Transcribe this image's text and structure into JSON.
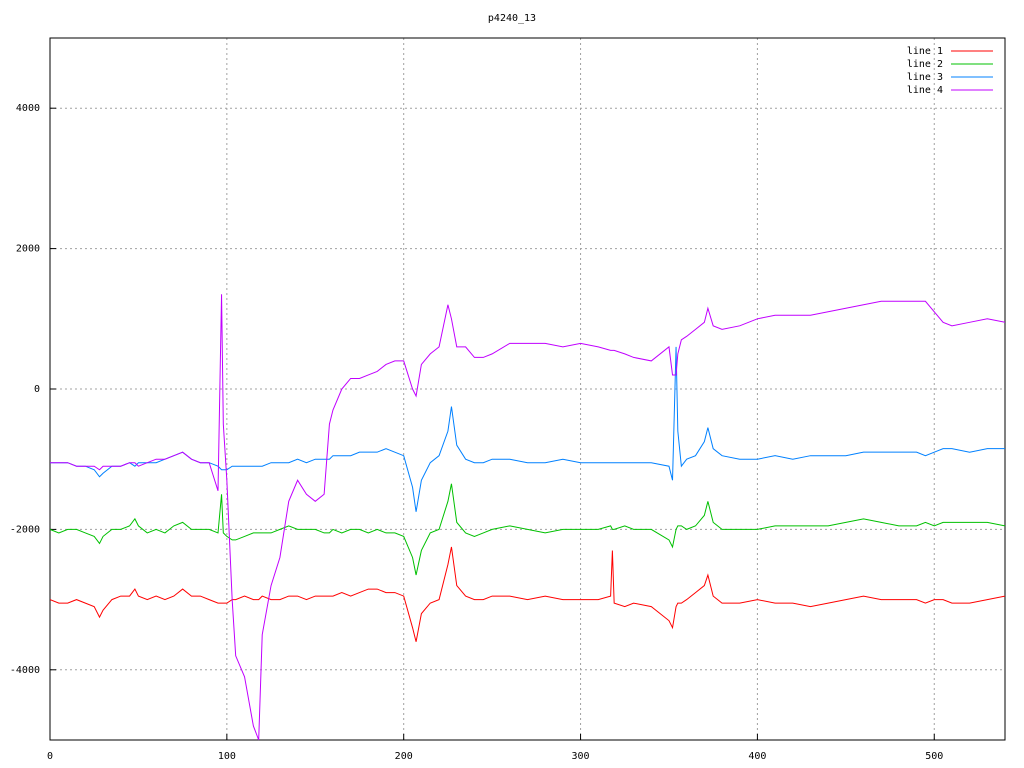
{
  "chart_data": {
    "type": "line",
    "title": "p4240_13",
    "x": [
      0,
      5,
      10,
      15,
      20,
      25,
      28,
      30,
      35,
      40,
      45,
      48,
      50,
      55,
      60,
      65,
      70,
      75,
      80,
      85,
      90,
      95,
      97,
      98,
      100,
      103,
      105,
      110,
      115,
      118,
      120,
      125,
      130,
      135,
      140,
      145,
      150,
      155,
      158,
      160,
      165,
      170,
      175,
      180,
      185,
      190,
      195,
      200,
      205,
      207,
      210,
      215,
      220,
      225,
      227,
      230,
      235,
      240,
      245,
      250,
      260,
      270,
      280,
      290,
      300,
      310,
      317,
      318,
      319,
      325,
      330,
      340,
      350,
      352,
      354,
      355,
      357,
      360,
      365,
      370,
      372,
      375,
      380,
      390,
      400,
      410,
      420,
      430,
      440,
      450,
      460,
      470,
      480,
      490,
      495,
      500,
      505,
      510,
      520,
      530,
      540
    ],
    "series": [
      {
        "name": "line 1",
        "color": "#ff0000",
        "values": [
          -3000,
          -3050,
          -3050,
          -3000,
          -3050,
          -3100,
          -3250,
          -3150,
          -3000,
          -2950,
          -2950,
          -2850,
          -2950,
          -3000,
          -2950,
          -3000,
          -2950,
          -2850,
          -2950,
          -2950,
          -3000,
          -3050,
          -3050,
          -3050,
          -3050,
          -3000,
          -3000,
          -2950,
          -3000,
          -3000,
          -2950,
          -3000,
          -3000,
          -2950,
          -2950,
          -3000,
          -2950,
          -2950,
          -2950,
          -2950,
          -2900,
          -2950,
          -2900,
          -2850,
          -2850,
          -2900,
          -2900,
          -2950,
          -3400,
          -3600,
          -3200,
          -3050,
          -3000,
          -2500,
          -2250,
          -2800,
          -2950,
          -3000,
          -3000,
          -2950,
          -2950,
          -3000,
          -2950,
          -3000,
          -3000,
          -3000,
          -2950,
          -2300,
          -3050,
          -3100,
          -3050,
          -3100,
          -3300,
          -3400,
          -3100,
          -3050,
          -3050,
          -3000,
          -2900,
          -2800,
          -2650,
          -2950,
          -3050,
          -3050,
          -3000,
          -3050,
          -3050,
          -3100,
          -3050,
          -3000,
          -2950,
          -3000,
          -3000,
          -3000,
          -3050,
          -3000,
          -3000,
          -3050,
          -3050,
          -3000,
          -2950
        ]
      },
      {
        "name": "line 2",
        "color": "#00c000",
        "values": [
          -2000,
          -2050,
          -2000,
          -2000,
          -2050,
          -2100,
          -2200,
          -2100,
          -2000,
          -2000,
          -1950,
          -1850,
          -1950,
          -2050,
          -2000,
          -2050,
          -1950,
          -1900,
          -2000,
          -2000,
          -2000,
          -2050,
          -1500,
          -2050,
          -2100,
          -2150,
          -2150,
          -2100,
          -2050,
          -2050,
          -2050,
          -2050,
          -2000,
          -1950,
          -2000,
          -2000,
          -2000,
          -2050,
          -2050,
          -2000,
          -2050,
          -2000,
          -2000,
          -2050,
          -2000,
          -2050,
          -2050,
          -2100,
          -2400,
          -2650,
          -2300,
          -2050,
          -2000,
          -1600,
          -1350,
          -1900,
          -2050,
          -2100,
          -2050,
          -2000,
          -1950,
          -2000,
          -2050,
          -2000,
          -2000,
          -2000,
          -1950,
          -2000,
          -2000,
          -1950,
          -2000,
          -2000,
          -2150,
          -2250,
          -2000,
          -1950,
          -1950,
          -2000,
          -1950,
          -1800,
          -1600,
          -1900,
          -2000,
          -2000,
          -2000,
          -1950,
          -1950,
          -1950,
          -1950,
          -1900,
          -1850,
          -1900,
          -1950,
          -1950,
          -1900,
          -1950,
          -1900,
          -1900,
          -1900,
          -1900,
          -1950
        ]
      },
      {
        "name": "line 3",
        "color": "#0080ff",
        "values": [
          -1050,
          -1050,
          -1050,
          -1100,
          -1100,
          -1150,
          -1250,
          -1200,
          -1100,
          -1100,
          -1050,
          -1100,
          -1050,
          -1050,
          -1050,
          -1000,
          -950,
          -900,
          -1000,
          -1050,
          -1050,
          -1100,
          -1150,
          -1150,
          -1150,
          -1100,
          -1100,
          -1100,
          -1100,
          -1100,
          -1100,
          -1050,
          -1050,
          -1050,
          -1000,
          -1050,
          -1000,
          -1000,
          -1000,
          -950,
          -950,
          -950,
          -900,
          -900,
          -900,
          -850,
          -900,
          -950,
          -1400,
          -1750,
          -1300,
          -1050,
          -950,
          -600,
          -250,
          -800,
          -1000,
          -1050,
          -1050,
          -1000,
          -1000,
          -1050,
          -1050,
          -1000,
          -1050,
          -1050,
          -1050,
          -1050,
          -1050,
          -1050,
          -1050,
          -1050,
          -1100,
          -1300,
          600,
          -600,
          -1100,
          -1000,
          -950,
          -750,
          -550,
          -850,
          -950,
          -1000,
          -1000,
          -950,
          -1000,
          -950,
          -950,
          -950,
          -900,
          -900,
          -900,
          -900,
          -950,
          -900,
          -850,
          -850,
          -900,
          -850,
          -850
        ]
      },
      {
        "name": "line 4",
        "color": "#c000ff",
        "values": [
          -1050,
          -1050,
          -1050,
          -1100,
          -1100,
          -1100,
          -1150,
          -1100,
          -1100,
          -1100,
          -1050,
          -1050,
          -1100,
          -1050,
          -1000,
          -1000,
          -950,
          -900,
          -1000,
          -1050,
          -1050,
          -1450,
          1350,
          -500,
          -1300,
          -3000,
          -3800,
          -4100,
          -4800,
          -5000,
          -3500,
          -2800,
          -2400,
          -1600,
          -1300,
          -1500,
          -1600,
          -1500,
          -500,
          -300,
          0,
          150,
          150,
          200,
          250,
          350,
          400,
          400,
          0,
          -100,
          350,
          500,
          600,
          1200,
          1000,
          600,
          600,
          450,
          450,
          500,
          650,
          650,
          650,
          600,
          650,
          600,
          550,
          550,
          550,
          500,
          450,
          400,
          600,
          200,
          200,
          500,
          700,
          750,
          850,
          950,
          1150,
          900,
          850,
          900,
          1000,
          1050,
          1050,
          1050,
          1100,
          1150,
          1200,
          1250,
          1250,
          1250,
          1250,
          1100,
          950,
          900,
          950,
          1000,
          950
        ]
      }
    ],
    "xlim": [
      0,
      540
    ],
    "ylim": [
      -5000,
      5000
    ],
    "xticks": [
      0,
      100,
      200,
      300,
      400,
      500
    ],
    "yticks": [
      -4000,
      -2000,
      0,
      2000,
      4000
    ],
    "grid": true,
    "legend": "upper-right"
  }
}
